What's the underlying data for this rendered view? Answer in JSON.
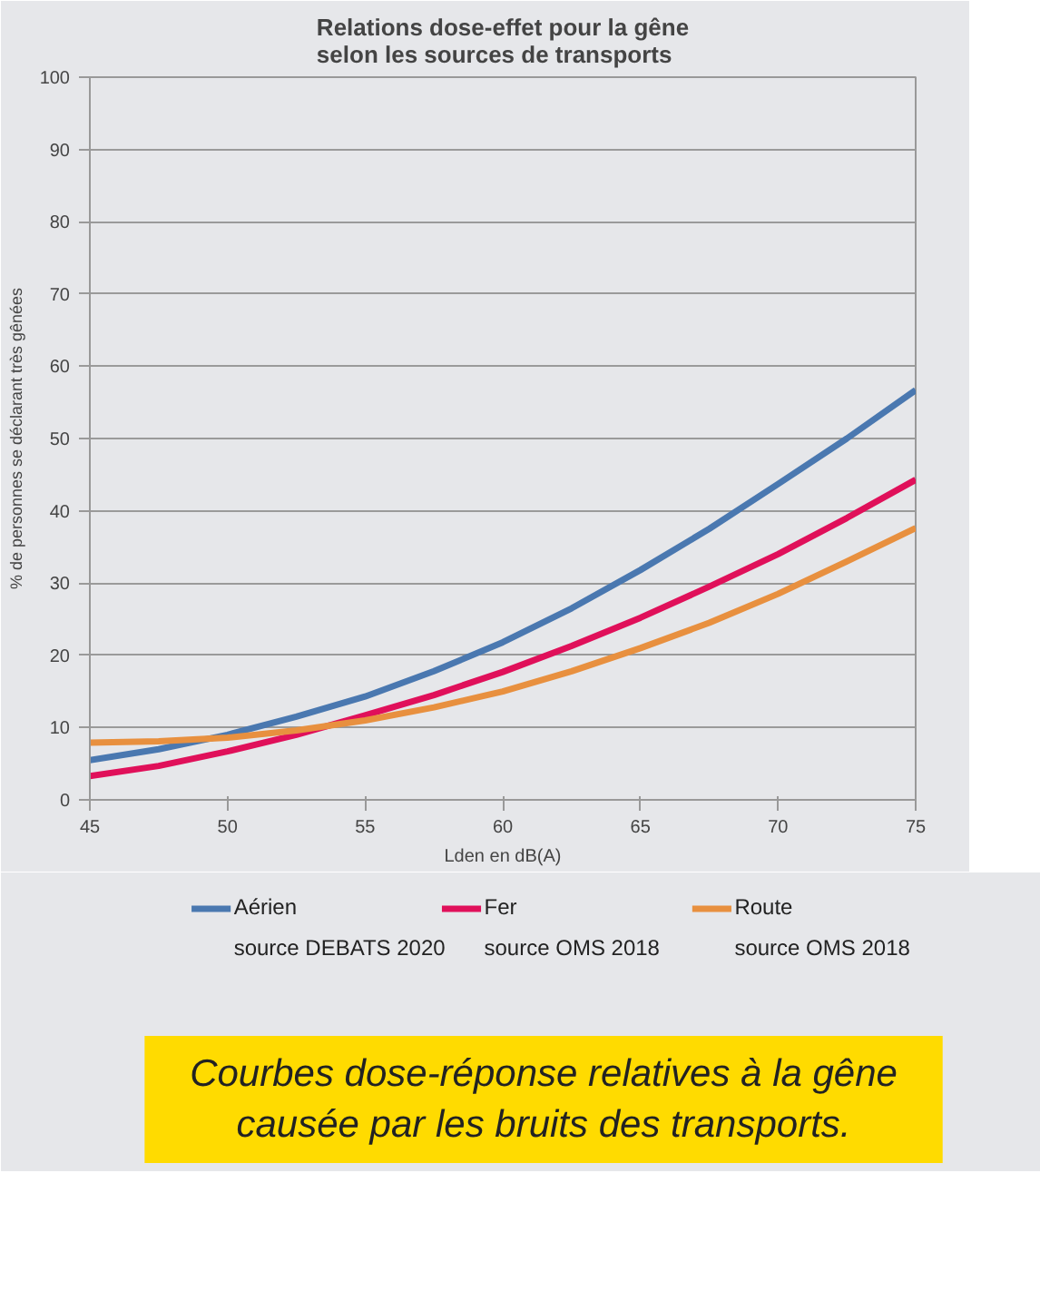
{
  "chart_data": {
    "type": "line",
    "title": "Relations dose-effet pour la gêne\nselon les sources de transports",
    "xlabel": "Lden en dB(A)",
    "ylabel": "% de personnes se déclarant très gênées",
    "x": [
      45,
      47.5,
      50,
      52.5,
      55,
      57.5,
      60,
      62.5,
      65,
      67.5,
      70,
      72.5,
      75
    ],
    "series": [
      {
        "name": "Aérien\nsource DEBATS 2020",
        "color": "#4a78b0",
        "values": [
          5.5,
          7,
          9,
          11.5,
          14.3,
          17.8,
          21.8,
          26.5,
          31.8,
          37.5,
          43.7,
          50,
          56.7
        ]
      },
      {
        "name": "Fer\nsource OMS 2018",
        "color": "#e0105a",
        "values": [
          3.3,
          4.7,
          6.7,
          9,
          11.7,
          14.5,
          17.7,
          21.3,
          25.2,
          29.5,
          34,
          39,
          44.3
        ]
      },
      {
        "name": "Route\nsource OMS 2018",
        "color": "#e8903f",
        "values": [
          7.9,
          8.1,
          8.6,
          9.6,
          11,
          12.8,
          15,
          17.8,
          21,
          24.5,
          28.5,
          33,
          37.6
        ]
      }
    ],
    "xlim": [
      45,
      75
    ],
    "ylim": [
      0,
      100
    ],
    "xticks": [
      45,
      50,
      55,
      60,
      65,
      70,
      75
    ],
    "yticks": [
      0,
      10,
      20,
      30,
      40,
      50,
      60,
      70,
      80,
      90,
      100
    ],
    "grid": "y",
    "legend": "bottom",
    "marker": "none",
    "line_style": "solid",
    "annotations": [
      "Courbes dose-réponse relatives à la gêne\ncausée par les bruits des transports."
    ]
  }
}
